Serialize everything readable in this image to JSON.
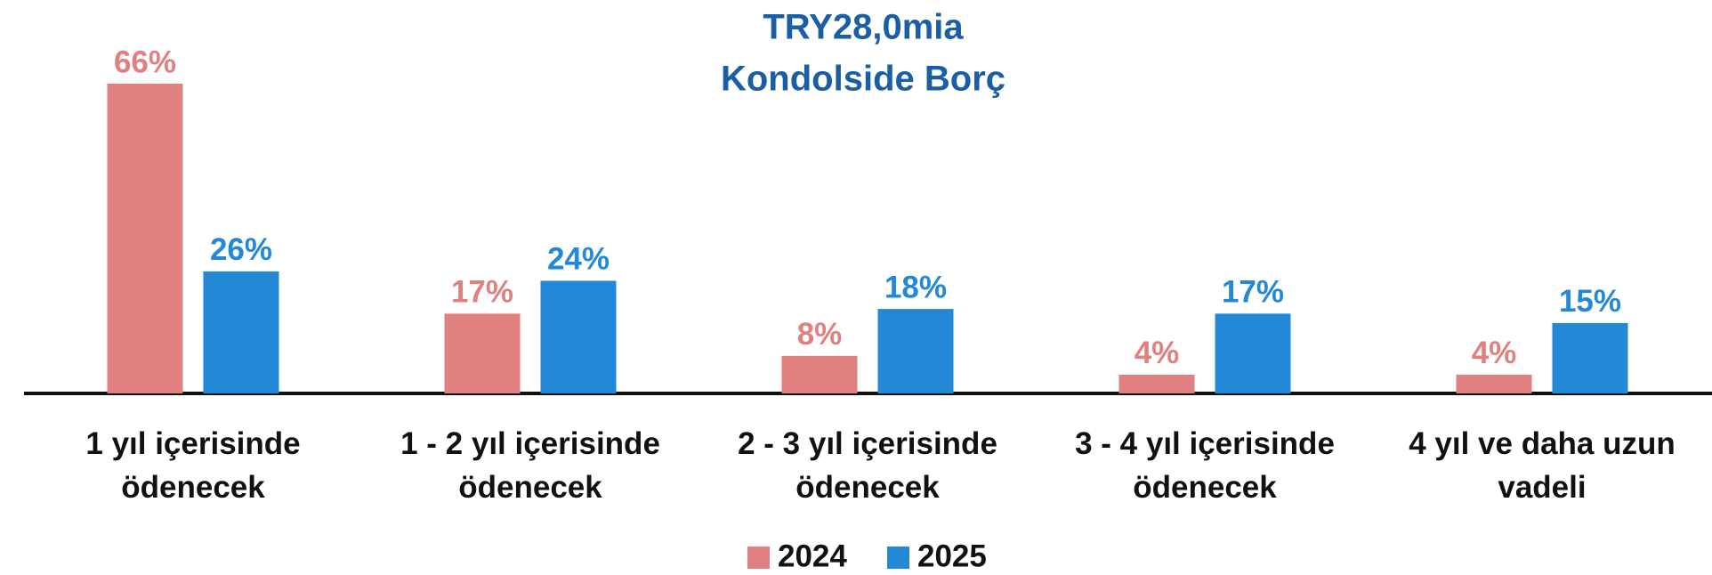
{
  "chart_data": {
    "type": "bar",
    "title": "TRY28,0mia",
    "subtitle": "Kondolside Borç",
    "categories": [
      "1 yıl içerisinde ödenecek",
      "1 - 2 yıl içerisinde ödenecek",
      "2 - 3 yıl içerisinde ödenecek",
      "3 - 4 yıl içerisinde ödenecek",
      "4 yıl ve daha uzun vadeli"
    ],
    "series": [
      {
        "name": "2024",
        "color": "#e08080",
        "values": [
          66,
          17,
          8,
          4,
          4
        ],
        "value_labels": [
          "66%",
          "17%",
          "8%",
          "4%",
          "4%"
        ]
      },
      {
        "name": "2025",
        "color": "#2389d6",
        "values": [
          26,
          24,
          18,
          17,
          15
        ],
        "value_labels": [
          "26%",
          "24%",
          "18%",
          "17%",
          "15%"
        ]
      }
    ],
    "legend": "bottom"
  }
}
